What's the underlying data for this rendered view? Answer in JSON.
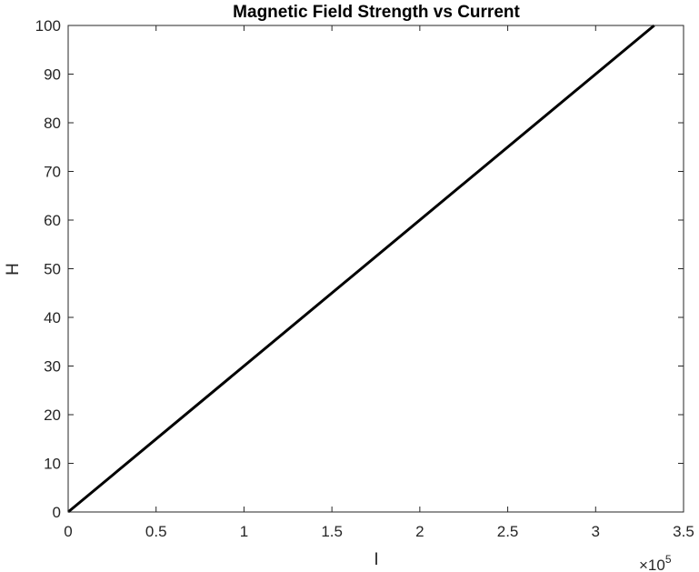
{
  "chart_data": {
    "type": "line",
    "title": "Magnetic Field Strength vs Current",
    "xlabel": "I",
    "ylabel": "H",
    "x_multiplier": {
      "base": "×10",
      "exponent": "5"
    },
    "xlim": [
      0,
      3.5
    ],
    "ylim": [
      0,
      100
    ],
    "x_ticks": [
      0,
      0.5,
      1,
      1.5,
      2,
      2.5,
      3,
      3.5
    ],
    "x_tick_labels": [
      "0",
      "0.5",
      "1",
      "1.5",
      "2",
      "2.5",
      "3",
      "3.5"
    ],
    "y_ticks": [
      0,
      10,
      20,
      30,
      40,
      50,
      60,
      70,
      80,
      90,
      100
    ],
    "y_tick_labels": [
      "0",
      "10",
      "20",
      "30",
      "40",
      "50",
      "60",
      "70",
      "80",
      "90",
      "100"
    ],
    "grid": false,
    "box": true,
    "series": [
      {
        "color": "#000000",
        "x": [
          0,
          3.333
        ],
        "y": [
          0,
          100
        ]
      }
    ]
  }
}
